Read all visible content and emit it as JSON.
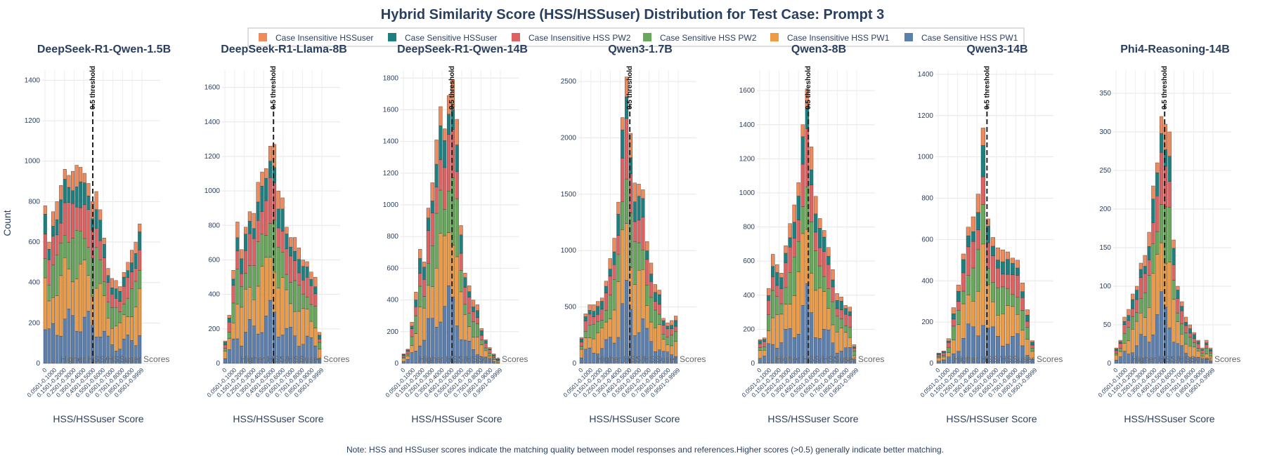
{
  "title": "Hybrid Similarity Score (HSS/HSSuser) Distribution for Test Case: Prompt 3",
  "note": "Note: HSS and HSSuser scores indicate the matching quality between model responses and references.Higher scores (>0.5) generally indicate better matching.",
  "xlabel": "HSS/HSSuser Score",
  "ylabel": "Count",
  "threshold_label": "0.5 threshold",
  "higher_label": "Higher HSS/HSSuser Scores",
  "chart_data": {
    "type": "bar",
    "stacked": true,
    "threshold_x": 0.5,
    "legend_position": "top",
    "series": [
      {
        "name": "Case Sensitive HSS PW1",
        "color": "#5b80b0"
      },
      {
        "name": "Case Insensitive HSS PW1",
        "color": "#ee9b45"
      },
      {
        "name": "Case Sensitive HSS PW2",
        "color": "#67a85a"
      },
      {
        "name": "Case Insensitive HSS PW2",
        "color": "#de6262"
      },
      {
        "name": "Case Sensitive HSSuser",
        "color": "#1d8080"
      },
      {
        "name": "Case Insensitive HSSuser",
        "color": "#ee8a5c"
      }
    ],
    "tick_labels": [
      "0",
      "0.0501-0.1000",
      "0.1501-0.2000",
      "0.2501-0.3000",
      "0.3501-0.4000",
      "0.4501-0.5000",
      "0.5501-0.6000",
      "0.6501-0.7000",
      "0.7501-0.8000",
      "0.8501-0.9000",
      "0.9501-0.9999"
    ],
    "panels": [
      {
        "title": "DeepSeek-R1-Qwen-1.5B",
        "ymax": 1450,
        "yticks": [
          0,
          200,
          400,
          600,
          800,
          1000,
          1200,
          1400
        ],
        "totals": [
          780,
          600,
          750,
          800,
          880,
          960,
          930,
          950,
          980,
          970,
          940,
          890,
          800,
          850,
          760,
          620,
          470,
          420,
          410,
          380,
          450,
          500,
          560,
          600,
          690
        ]
      },
      {
        "title": "DeepSeek-R1-Llama-8B",
        "ymax": 1700,
        "yticks": [
          0,
          200,
          400,
          600,
          800,
          1000,
          1200,
          1400,
          1600
        ],
        "totals": [
          130,
          280,
          540,
          820,
          660,
          790,
          880,
          870,
          1050,
          1110,
          1130,
          1260,
          1270,
          1000,
          960,
          790,
          730,
          730,
          670,
          600,
          590,
          530,
          500,
          180
        ]
      },
      {
        "title": "DeepSeek-R1-Qwen-14B",
        "ymax": 1850,
        "yticks": [
          0,
          200,
          400,
          600,
          800,
          1000,
          1200,
          1400,
          1600,
          1800
        ],
        "totals": [
          60,
          90,
          260,
          450,
          720,
          640,
          980,
          1140,
          1410,
          1620,
          1480,
          1690,
          1790,
          1540,
          870,
          570,
          490,
          400,
          370,
          220,
          150,
          100,
          60,
          30
        ]
      },
      {
        "title": "Qwen3-1.7B",
        "ymax": 2600,
        "yticks": [
          0,
          500,
          1000,
          1500,
          2000,
          2500
        ],
        "totals": [
          230,
          440,
          520,
          520,
          550,
          580,
          730,
          930,
          1110,
          1430,
          2180,
          2540,
          2040,
          1600,
          1590,
          1540,
          1080,
          890,
          700,
          650,
          400,
          360,
          380,
          420
        ]
      },
      {
        "title": "Qwen3-8B",
        "ymax": 1720,
        "yticks": [
          0,
          200,
          400,
          600,
          800,
          1000,
          1200,
          1400,
          1600
        ],
        "totals": [
          140,
          150,
          440,
          640,
          580,
          530,
          690,
          820,
          930,
          1060,
          1400,
          1610,
          1270,
          980,
          850,
          780,
          680,
          550,
          410,
          390,
          340,
          330,
          110
        ]
      },
      {
        "title": "Qwen3-14B",
        "ymax": 1420,
        "yticks": [
          0,
          200,
          400,
          600,
          800,
          1000,
          1200,
          1400
        ],
        "totals": [
          50,
          60,
          120,
          270,
          380,
          530,
          660,
          710,
          820,
          1140,
          700,
          610,
          560,
          550,
          540,
          510,
          500,
          390,
          260,
          110
        ]
      },
      {
        "title": "Phi4-Reasoning-14B",
        "ymax": 380,
        "yticks": [
          0,
          50,
          100,
          150,
          200,
          250,
          300,
          350
        ],
        "totals": [
          20,
          30,
          60,
          70,
          90,
          100,
          130,
          140,
          170,
          230,
          260,
          320,
          310,
          300,
          160,
          100,
          80,
          60,
          50,
          40,
          30,
          20,
          30,
          20
        ]
      }
    ]
  }
}
